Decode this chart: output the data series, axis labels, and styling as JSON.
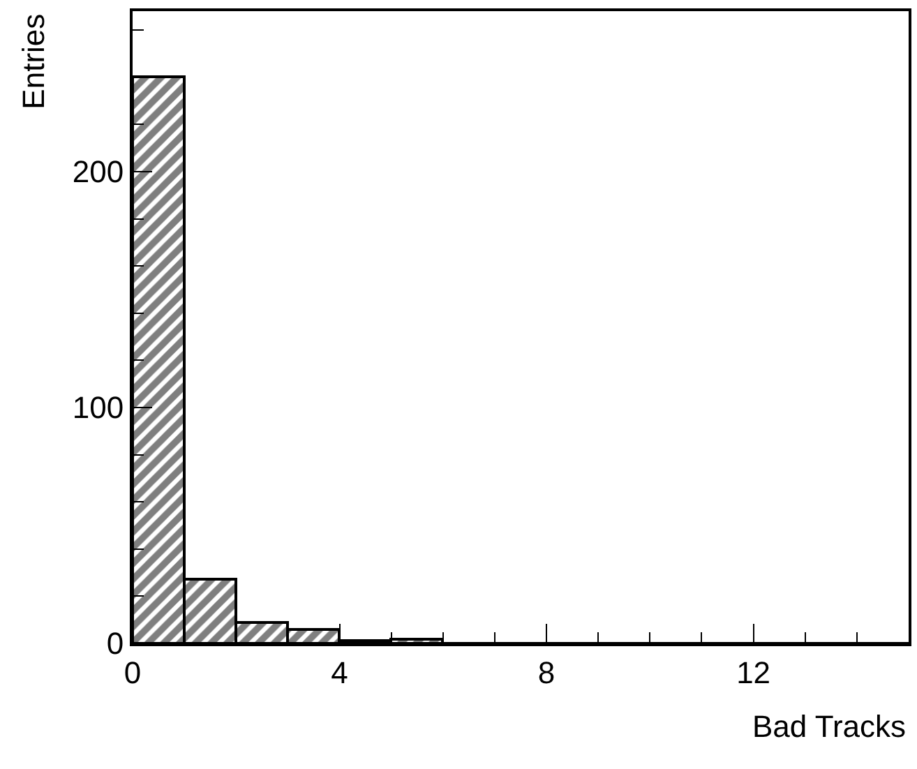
{
  "chart_data": {
    "type": "histogram",
    "xlabel": "Bad Tracks",
    "ylabel": "Entries",
    "bins": [
      0,
      1,
      2,
      3,
      4,
      5,
      6,
      7,
      8,
      9,
      10,
      11,
      12,
      13,
      14,
      15
    ],
    "values": [
      240,
      27,
      9,
      6,
      1,
      2,
      0,
      0,
      0,
      0,
      0,
      0,
      0,
      0,
      0
    ],
    "color": "#000000",
    "xlim": [
      0,
      15
    ],
    "xticks": [
      0,
      4,
      8,
      12
    ],
    "ylim": [
      0,
      268
    ],
    "yticks": [
      0,
      100,
      200
    ]
  }
}
